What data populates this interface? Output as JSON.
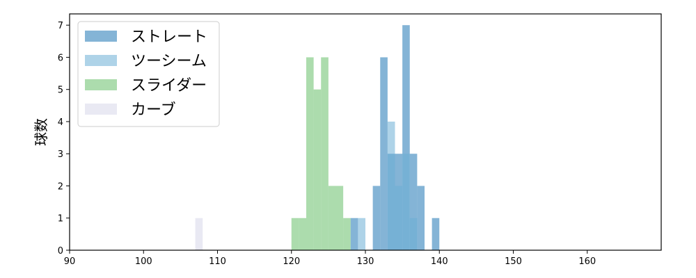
{
  "chart_data": {
    "type": "bar",
    "subtype": "histogram-overlay",
    "xlabel": "",
    "ylabel": "球数",
    "xlim": [
      90,
      170
    ],
    "ylim": [
      0,
      7.35
    ],
    "xticks": [
      90,
      100,
      110,
      120,
      130,
      140,
      150,
      160
    ],
    "yticks": [
      0,
      1,
      2,
      3,
      4,
      5,
      6,
      7
    ],
    "grid": false,
    "legend_position": "top-left",
    "bin_width": 1,
    "series": [
      {
        "name": "ストレート",
        "color": "#1f77b4",
        "opacity": 0.55,
        "bins": [
          {
            "x": 128,
            "count": 1
          },
          {
            "x": 131,
            "count": 2
          },
          {
            "x": 132,
            "count": 6
          },
          {
            "x": 133,
            "count": 3
          },
          {
            "x": 134,
            "count": 3
          },
          {
            "x": 135,
            "count": 7
          },
          {
            "x": 136,
            "count": 3
          },
          {
            "x": 137,
            "count": 2
          },
          {
            "x": 139,
            "count": 1
          }
        ]
      },
      {
        "name": "ツーシーム",
        "color": "#6baed6",
        "opacity": 0.55,
        "bins": [
          {
            "x": 129,
            "count": 1
          },
          {
            "x": 133,
            "count": 4
          },
          {
            "x": 134,
            "count": 2
          },
          {
            "x": 135,
            "count": 3
          },
          {
            "x": 136,
            "count": 1
          }
        ]
      },
      {
        "name": "スライダー",
        "color": "#74c476",
        "opacity": 0.6,
        "bins": [
          {
            "x": 120,
            "count": 1
          },
          {
            "x": 121,
            "count": 1
          },
          {
            "x": 122,
            "count": 6
          },
          {
            "x": 123,
            "count": 5
          },
          {
            "x": 124,
            "count": 6
          },
          {
            "x": 125,
            "count": 2
          },
          {
            "x": 126,
            "count": 2
          },
          {
            "x": 127,
            "count": 1
          }
        ]
      },
      {
        "name": "カーブ",
        "color": "#dadaeb",
        "opacity": 0.6,
        "bins": [
          {
            "x": 107,
            "count": 1
          }
        ]
      }
    ]
  }
}
